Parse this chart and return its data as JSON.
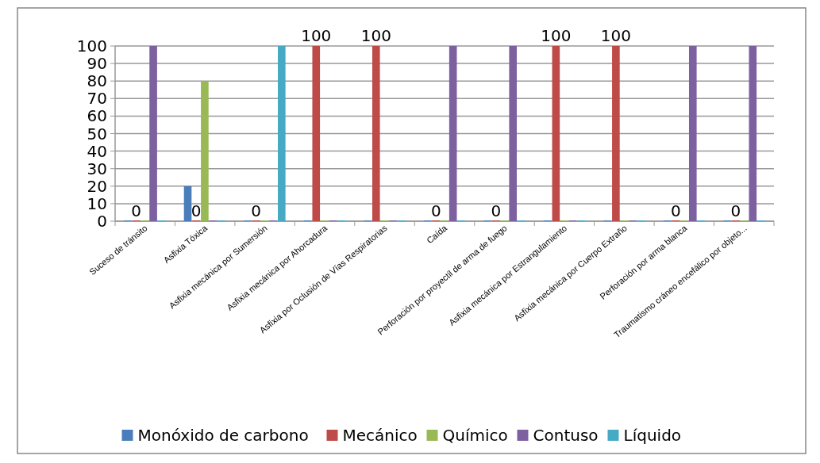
{
  "chart_data": {
    "type": "bar",
    "categories": [
      "Suceso de tránsito",
      "Asfixia Tóxica",
      "Asfixia mecánica por Sumersión",
      "Asfixia mecánica por Ahorcadura",
      "Asfixia por Oclusión de Vías Respiratorias",
      "Caída",
      "Perforación por proyectil de arma de fuego",
      "Asfixia mecánica por Estrangulamiento",
      "Asfixia mecánica por Cuerpo Extraño",
      "Perforación por arma blanca",
      "Traumatismo cráneo encefálico por objeto..."
    ],
    "series": [
      {
        "name": "Monóxido de carbono",
        "color": "#4a7ebb",
        "values": [
          0,
          20,
          0,
          0,
          0,
          0,
          0,
          0,
          0,
          0,
          0
        ]
      },
      {
        "name": "Mecánico",
        "color": "#be4b48",
        "values": [
          0,
          0,
          0,
          100,
          100,
          0,
          0,
          100,
          100,
          0,
          0
        ],
        "value_labels": [
          "0",
          "0",
          "0",
          "100",
          "100",
          "0",
          "0",
          "100",
          "100",
          "0",
          "0"
        ]
      },
      {
        "name": "Químico",
        "color": "#98b954",
        "values": [
          0,
          80,
          0,
          0,
          0,
          0,
          0,
          0,
          0,
          0,
          0
        ]
      },
      {
        "name": "Contuso",
        "color": "#7d60a0",
        "values": [
          100,
          0,
          0,
          0,
          0,
          100,
          100,
          0,
          0,
          100,
          100
        ]
      },
      {
        "name": "Líquido",
        "color": "#46aac5",
        "values": [
          0,
          0,
          100,
          0,
          0,
          0,
          0,
          0,
          0,
          0,
          0
        ]
      }
    ],
    "ylim": [
      0,
      100
    ],
    "yticks": [
      0,
      10,
      20,
      30,
      40,
      50,
      60,
      70,
      80,
      90,
      100
    ],
    "grid": "y",
    "legend": "bottom"
  }
}
